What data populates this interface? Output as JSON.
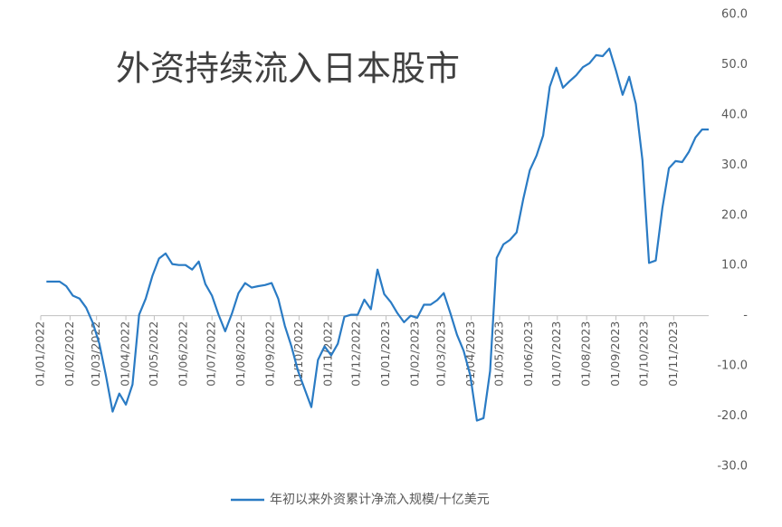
{
  "chart_data": {
    "type": "line",
    "title": "外资持续流入日本股市",
    "x": [
      "2022-01-07",
      "2022-01-14",
      "2022-01-21",
      "2022-01-28",
      "2022-02-04",
      "2022-02-11",
      "2022-02-18",
      "2022-02-25",
      "2022-03-04",
      "2022-03-11",
      "2022-03-18",
      "2022-03-25",
      "2022-04-01",
      "2022-04-08",
      "2022-04-15",
      "2022-04-22",
      "2022-04-29",
      "2022-05-06",
      "2022-05-13",
      "2022-05-20",
      "2022-05-27",
      "2022-06-03",
      "2022-06-10",
      "2022-06-17",
      "2022-06-24",
      "2022-07-01",
      "2022-07-08",
      "2022-07-15",
      "2022-07-22",
      "2022-07-29",
      "2022-08-05",
      "2022-08-12",
      "2022-08-19",
      "2022-08-26",
      "2022-09-02",
      "2022-09-09",
      "2022-09-16",
      "2022-09-23",
      "2022-09-30",
      "2022-10-07",
      "2022-10-14",
      "2022-10-21",
      "2022-10-28",
      "2022-11-04",
      "2022-11-11",
      "2022-11-18",
      "2022-11-25",
      "2022-12-02",
      "2022-12-09",
      "2022-12-16",
      "2022-12-23",
      "2022-12-30",
      "2023-01-06",
      "2023-01-13",
      "2023-01-20",
      "2023-01-27",
      "2023-02-03",
      "2023-02-10",
      "2023-02-17",
      "2023-02-24",
      "2023-03-03",
      "2023-03-10",
      "2023-03-17",
      "2023-03-24",
      "2023-03-31",
      "2023-04-07",
      "2023-04-14",
      "2023-04-21",
      "2023-04-28",
      "2023-05-05",
      "2023-05-12",
      "2023-05-19",
      "2023-05-26",
      "2023-06-02",
      "2023-06-09",
      "2023-06-16",
      "2023-06-23",
      "2023-06-30",
      "2023-07-07",
      "2023-07-14",
      "2023-07-21",
      "2023-07-28",
      "2023-08-04",
      "2023-08-11",
      "2023-08-18",
      "2023-08-25",
      "2023-09-01",
      "2023-09-08",
      "2023-09-15",
      "2023-09-22",
      "2023-09-29",
      "2023-10-06",
      "2023-10-13",
      "2023-10-20",
      "2023-10-27",
      "2023-11-03",
      "2023-11-10",
      "2023-11-17",
      "2023-11-24",
      "2023-12-01",
      "2023-12-08"
    ],
    "series": [
      {
        "name": "年初以来外资累计净流入规模/十亿美元",
        "color": "#2a7bc4",
        "values": [
          6.8,
          6.8,
          6.8,
          5.9,
          4.0,
          3.4,
          1.6,
          -1.4,
          -5.6,
          -12,
          -19.1,
          -15.5,
          -17.7,
          -13.7,
          0.2,
          3.4,
          7.9,
          11.4,
          12.4,
          10.3,
          10.1,
          10.1,
          9.2,
          10.8,
          6.3,
          4.0,
          0.2,
          -3.1,
          0.4,
          4.5,
          6.5,
          5.6,
          5.9,
          6.1,
          6.5,
          3.4,
          -2.0,
          -6.1,
          -11,
          -14.6,
          -18.2,
          -8.8,
          -6.1,
          -7.9,
          -5.6,
          -0.2,
          0.2,
          0.2,
          3.2,
          1.3,
          9.2,
          4.3,
          2.7,
          0.5,
          -1.3,
          0,
          -0.4,
          2.2,
          2.2,
          3.1,
          4.5,
          0.5,
          -3.8,
          -7.0,
          -11.9,
          -20.9,
          -20.4,
          -11,
          11.5,
          14.2,
          15.1,
          16.6,
          23.2,
          29.0,
          31.9,
          35.9,
          45.6,
          49.4,
          45.4,
          46.7,
          47.9,
          49.5,
          50.3,
          51.9,
          51.7,
          53.2,
          48.8,
          44.0,
          47.6,
          42.2,
          31.0,
          10.5,
          11.0,
          21.4,
          29.4,
          30.8,
          30.6,
          32.6,
          35.5,
          37.1,
          37.1
        ]
      }
    ],
    "xlim": [
      "2022-01-01",
      "2023-12-08"
    ],
    "xticks": [
      {
        "value": "2022-01-01",
        "label": "01/01/2022"
      },
      {
        "value": "2022-02-01",
        "label": "01/02/2022"
      },
      {
        "value": "2022-03-01",
        "label": "01/03/2022"
      },
      {
        "value": "2022-04-01",
        "label": "01/04/2022"
      },
      {
        "value": "2022-05-01",
        "label": "01/05/2022"
      },
      {
        "value": "2022-06-01",
        "label": "01/06/2022"
      },
      {
        "value": "2022-07-01",
        "label": "01/07/2022"
      },
      {
        "value": "2022-08-01",
        "label": "01/08/2022"
      },
      {
        "value": "2022-09-01",
        "label": "01/09/2022"
      },
      {
        "value": "2022-10-01",
        "label": "01/10/2022"
      },
      {
        "value": "2022-11-01",
        "label": "01/11/2022"
      },
      {
        "value": "2022-12-01",
        "label": "01/12/2022"
      },
      {
        "value": "2023-01-01",
        "label": "01/01/2023"
      },
      {
        "value": "2023-02-01",
        "label": "01/02/2023"
      },
      {
        "value": "2023-03-01",
        "label": "01/03/2023"
      },
      {
        "value": "2023-04-01",
        "label": "01/04/2023"
      },
      {
        "value": "2023-05-01",
        "label": "01/05/2023"
      },
      {
        "value": "2023-06-01",
        "label": "01/06/2023"
      },
      {
        "value": "2023-07-01",
        "label": "01/07/2023"
      },
      {
        "value": "2023-08-01",
        "label": "01/08/2023"
      },
      {
        "value": "2023-09-01",
        "label": "01/09/2023"
      },
      {
        "value": "2023-10-01",
        "label": "01/10/2023"
      },
      {
        "value": "2023-11-01",
        "label": "01/11/2023"
      }
    ],
    "ylim": [
      -30,
      60
    ],
    "yticks": [
      {
        "value": -30,
        "label": "-30.0"
      },
      {
        "value": -20,
        "label": "-20.0"
      },
      {
        "value": -10,
        "label": "-10.0"
      },
      {
        "value": 0,
        "label": "-"
      },
      {
        "value": 10,
        "label": "10.0"
      },
      {
        "value": 20,
        "label": "20.0"
      },
      {
        "value": 30,
        "label": "30.0"
      },
      {
        "value": 40,
        "label": "40.0"
      },
      {
        "value": 50,
        "label": "50.0"
      },
      {
        "value": 60,
        "label": "60.0"
      }
    ],
    "grid": false,
    "legend": "bottom"
  }
}
